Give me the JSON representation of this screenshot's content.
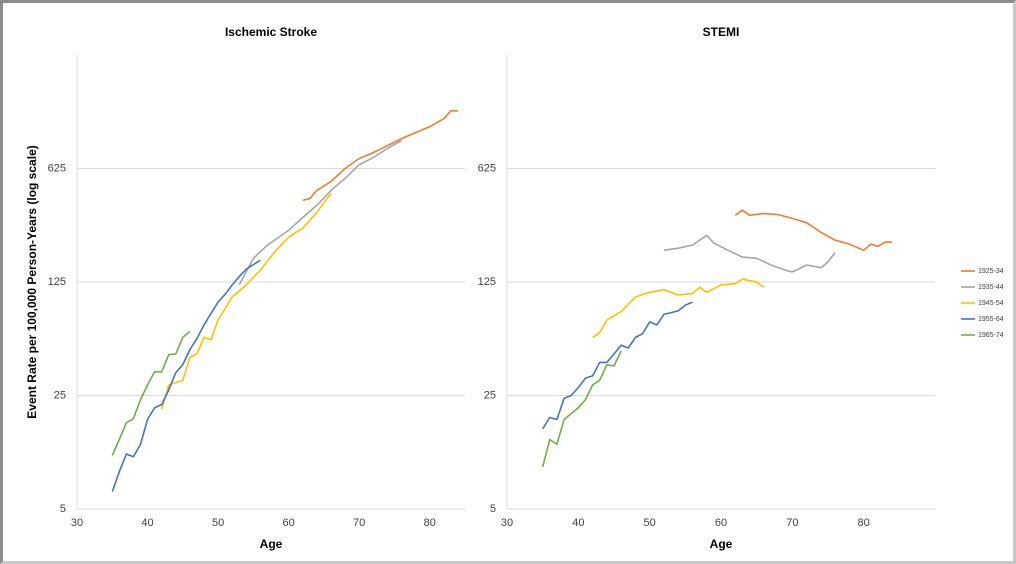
{
  "chart_data": [
    {
      "type": "line",
      "title": "Ischemic Stroke",
      "x_label": "Age",
      "y_label": "Event Rate per 100,000 Person-Years (log scale)",
      "log_y": true,
      "grid": true,
      "xlim": [
        30,
        85
      ],
      "xticks": [
        30,
        40,
        50,
        60,
        70,
        80
      ],
      "ylim": [
        5,
        3125
      ],
      "yticks": [
        5,
        25,
        125,
        625
      ],
      "series": [
        {
          "name": "1925-34",
          "color": "#ed7d31",
          "x": [
            62,
            63,
            64,
            66,
            68,
            70,
            72,
            74,
            76,
            78,
            80,
            82,
            83,
            84
          ],
          "values": [
            398,
            408,
            458,
            520,
            625,
            720,
            783,
            865,
            955,
            1040,
            1130,
            1266,
            1417,
            1417
          ]
        },
        {
          "name": "1935-44",
          "color": "#a5a5a5",
          "x": [
            53,
            55,
            57,
            60,
            62,
            64,
            66,
            68,
            70,
            72,
            74,
            76
          ],
          "values": [
            120,
            175,
            211,
            260,
            312,
            371,
            458,
            543,
            660,
            730,
            830,
            929
          ]
        },
        {
          "name": "1945-54",
          "color": "#ffc000",
          "x": [
            42,
            43,
            44,
            45,
            46,
            47,
            48,
            49,
            50,
            52,
            54,
            56,
            58,
            60,
            62,
            64,
            66
          ],
          "values": [
            20.6,
            29,
            30,
            31,
            43,
            45,
            57,
            55,
            73,
            101,
            120,
            148,
            191,
            236,
            268,
            336,
            439
          ]
        },
        {
          "name": "1955-64",
          "color": "#4472c4",
          "x": [
            35,
            36,
            37,
            38,
            39,
            40,
            41,
            42,
            43,
            44,
            45,
            46,
            47,
            48,
            49,
            50,
            51,
            52,
            53,
            54,
            55,
            56
          ],
          "values": [
            6.4,
            8.5,
            10.9,
            10.5,
            12.5,
            17.8,
            21,
            22,
            27,
            34.6,
            38.7,
            48,
            56,
            68,
            80,
            94,
            105,
            120,
            135,
            150,
            160,
            170
          ]
        },
        {
          "name": "1965-74",
          "color": "#70ad47",
          "x": [
            35,
            36,
            37,
            38,
            39,
            40,
            41,
            42,
            43,
            44,
            45,
            46
          ],
          "values": [
            10.7,
            13.4,
            17,
            18,
            23.6,
            29,
            35,
            35,
            44.6,
            45,
            57,
            62
          ]
        }
      ]
    },
    {
      "type": "line",
      "title": "STEMI",
      "x_label": "Age",
      "legend": "right",
      "log_y": true,
      "grid": true,
      "xlim": [
        30,
        90
      ],
      "xticks": [
        30,
        40,
        50,
        60,
        70,
        80
      ],
      "ylim": [
        5,
        3125
      ],
      "yticks": [
        5,
        25,
        125,
        625
      ],
      "series": [
        {
          "name": "1925-34",
          "color": "#ed7d31",
          "x": [
            62,
            63,
            64,
            66,
            68,
            70,
            72,
            74,
            76,
            78,
            80,
            81,
            82,
            83,
            84
          ],
          "values": [
            322,
            346,
            322,
            330,
            325,
            308,
            290,
            253,
            226,
            214,
            196,
            214,
            207,
            220,
            220
          ]
        },
        {
          "name": "1935-44",
          "color": "#a5a5a5",
          "x": [
            52,
            54,
            56,
            57,
            58,
            59,
            61,
            63,
            65,
            67,
            69,
            70,
            72,
            74,
            75,
            76
          ],
          "values": [
            196,
            202,
            211,
            226,
            242,
            217,
            196,
            178,
            175,
            159,
            148,
            144,
            159,
            153,
            166,
            190
          ]
        },
        {
          "name": "1945-54",
          "color": "#ffc000",
          "x": [
            42,
            43,
            44,
            46,
            48,
            50,
            52,
            54,
            56,
            57,
            58,
            60,
            62,
            63,
            65,
            66
          ],
          "values": [
            57,
            61,
            73,
            82,
            101,
            108,
            112,
            104,
            106,
            116,
            108,
            120,
            122,
            130,
            125,
            116
          ]
        },
        {
          "name": "1955-64",
          "color": "#4472c4",
          "x": [
            35,
            36,
            37,
            38,
            39,
            40,
            41,
            42,
            43,
            44,
            45,
            46,
            47,
            48,
            49,
            50,
            51,
            52,
            54,
            55,
            56
          ],
          "values": [
            15.6,
            18.3,
            17.8,
            24,
            25,
            28,
            32,
            33,
            40,
            40,
            45,
            51,
            49,
            57,
            60,
            71,
            68,
            79,
            83,
            90,
            94
          ]
        },
        {
          "name": "1965-74",
          "color": "#70ad47",
          "x": [
            35,
            36,
            37,
            38,
            40,
            41,
            42,
            43,
            44,
            45,
            46
          ],
          "values": [
            9.1,
            13.4,
            12.5,
            17.8,
            21,
            23.6,
            29,
            31,
            38.7,
            38,
            47
          ]
        }
      ]
    }
  ]
}
